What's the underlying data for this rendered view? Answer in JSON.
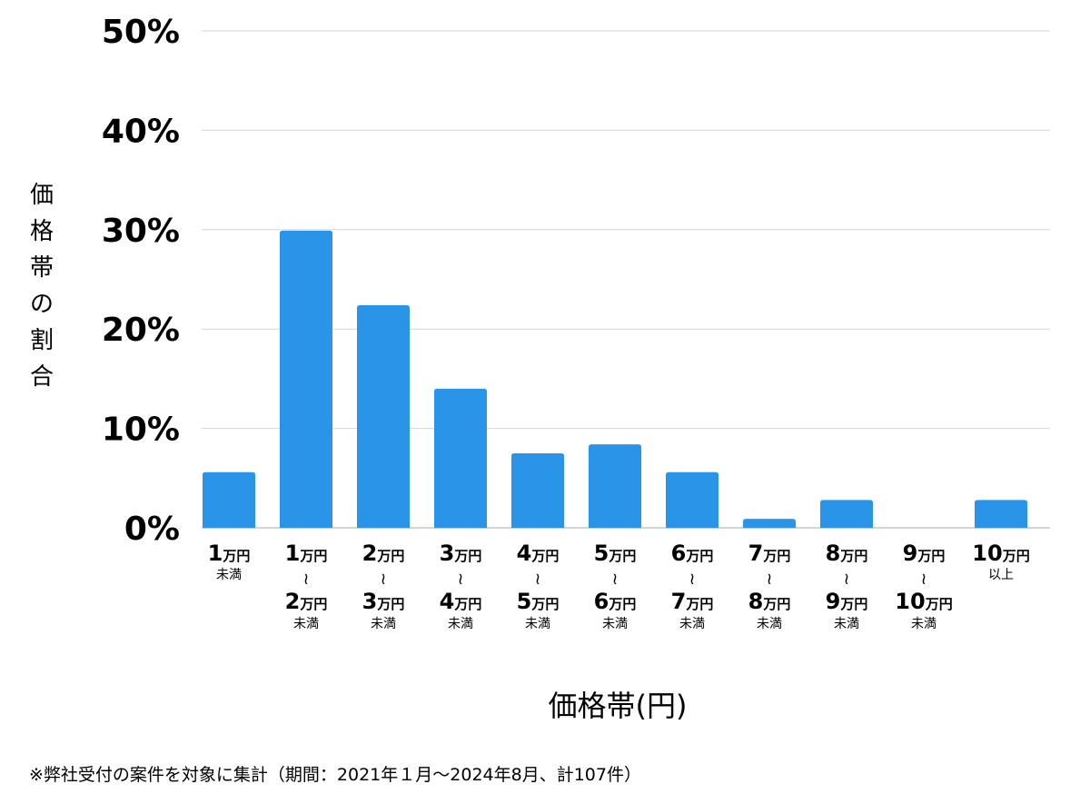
{
  "chart_data": {
    "type": "bar",
    "xlabel": "価格帯(円)",
    "ylabel": "価格帯の割合",
    "y_ticks": [
      "0%",
      "10%",
      "20%",
      "30%",
      "40%",
      "50%"
    ],
    "ylim": [
      0,
      50
    ],
    "grid": true,
    "bar_color": "#2a94e8",
    "categories": [
      {
        "lines": [
          {
            "num": "1",
            "unit": "万円"
          }
        ],
        "suffix": "未満"
      },
      {
        "lines": [
          {
            "num": "1",
            "unit": "万円"
          },
          {
            "num": "2",
            "unit": "万円"
          }
        ],
        "tilde": "≀",
        "suffix": "未満"
      },
      {
        "lines": [
          {
            "num": "2",
            "unit": "万円"
          },
          {
            "num": "3",
            "unit": "万円"
          }
        ],
        "tilde": "≀",
        "suffix": "未満"
      },
      {
        "lines": [
          {
            "num": "3",
            "unit": "万円"
          },
          {
            "num": "4",
            "unit": "万円"
          }
        ],
        "tilde": "≀",
        "suffix": "未満"
      },
      {
        "lines": [
          {
            "num": "4",
            "unit": "万円"
          },
          {
            "num": "5",
            "unit": "万円"
          }
        ],
        "tilde": "≀",
        "suffix": "未満"
      },
      {
        "lines": [
          {
            "num": "5",
            "unit": "万円"
          },
          {
            "num": "6",
            "unit": "万円"
          }
        ],
        "tilde": "≀",
        "suffix": "未満"
      },
      {
        "lines": [
          {
            "num": "6",
            "unit": "万円"
          },
          {
            "num": "7",
            "unit": "万円"
          }
        ],
        "tilde": "≀",
        "suffix": "未満"
      },
      {
        "lines": [
          {
            "num": "7",
            "unit": "万円"
          },
          {
            "num": "8",
            "unit": "万円"
          }
        ],
        "tilde": "≀",
        "suffix": "未満"
      },
      {
        "lines": [
          {
            "num": "8",
            "unit": "万円"
          },
          {
            "num": "9",
            "unit": "万円"
          }
        ],
        "tilde": "≀",
        "suffix": "未満"
      },
      {
        "lines": [
          {
            "num": "9",
            "unit": "万円"
          },
          {
            "num": "10",
            "unit": "万円"
          }
        ],
        "tilde": "≀",
        "suffix": "未満"
      },
      {
        "lines": [
          {
            "num": "10",
            "unit": "万円"
          }
        ],
        "suffix": "以上"
      }
    ],
    "values": [
      5.6,
      29.9,
      22.4,
      14.0,
      7.5,
      8.4,
      5.6,
      0.9,
      2.8,
      0,
      2.8
    ]
  },
  "footnote": "※弊社受付の案件を対象に集計（期間：2021年１月〜2024年8月、計107件）"
}
